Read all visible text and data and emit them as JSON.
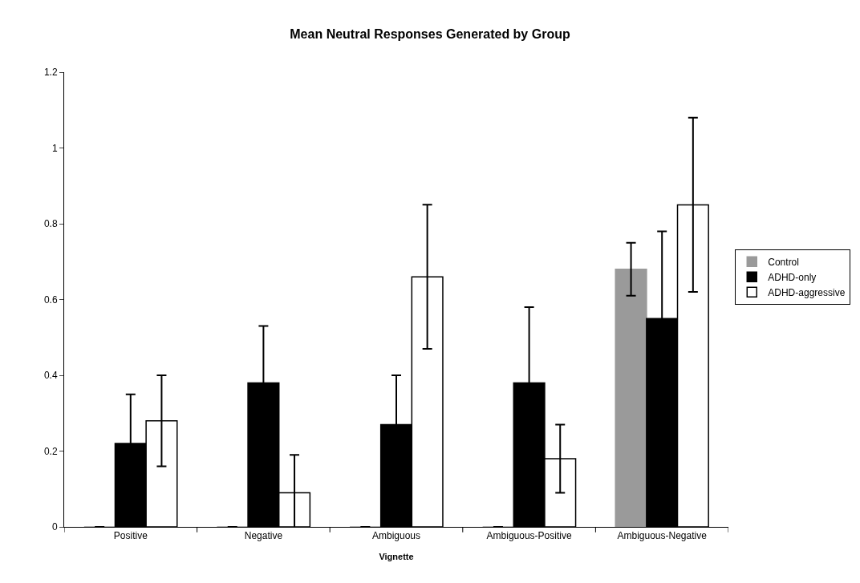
{
  "chart_data": {
    "type": "bar",
    "title": "Mean Neutral Responses Generated by Group",
    "xlabel": "Vignette",
    "categories": [
      "Positive",
      "Negative",
      "Ambiguous",
      "Ambiguous-Positive",
      "Ambiguous-Negative"
    ],
    "series": [
      {
        "name": "Control",
        "color": "#9a9a9a",
        "values": [
          0,
          0,
          0,
          0,
          0.68
        ],
        "errors": [
          null,
          null,
          null,
          null,
          0.07
        ]
      },
      {
        "name": "ADHD-only",
        "color": "#000000",
        "values": [
          0.22,
          0.38,
          0.27,
          0.38,
          0.55
        ],
        "errors": [
          0.13,
          0.15,
          0.13,
          0.2,
          0.23
        ]
      },
      {
        "name": "ADHD-aggressive",
        "color": "#ffffff",
        "values": [
          0.28,
          0.09,
          0.66,
          0.18,
          0.85
        ],
        "errors": [
          0.12,
          0.1,
          0.19,
          0.09,
          0.23
        ]
      }
    ],
    "ylim": [
      0,
      1.2
    ],
    "yticks": [
      0,
      0.2,
      0.4,
      0.6,
      0.8,
      1,
      1.2
    ],
    "legend": "right"
  }
}
